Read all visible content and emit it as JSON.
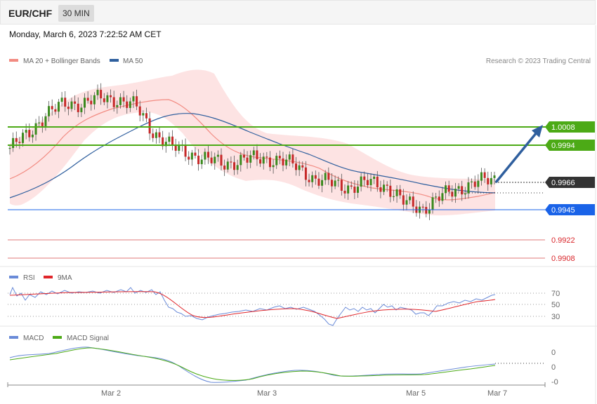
{
  "header": {
    "symbol": "EUR/CHF",
    "timeframe": "30 MIN",
    "datetime": "Monday, March 6, 2023 7:22:52 AM CET"
  },
  "legend": {
    "ma20_label": "MA 20 + Bollinger Bands",
    "ma50_label": "MA 50",
    "copyright": "Research © 2023 Trading Central",
    "ma20_color": "#f28b82",
    "ma50_color": "#2f5f9e"
  },
  "price_levels": [
    {
      "value": "1.0008",
      "type": "resistance",
      "color": "#4caa16"
    },
    {
      "value": "0.9994",
      "type": "resistance",
      "color": "#4caa16"
    },
    {
      "value": "0.9966",
      "type": "current",
      "color": "#333333"
    },
    {
      "value": "0.9945",
      "type": "pivot",
      "color": "#1a63e8"
    },
    {
      "value": "0.9922",
      "type": "support",
      "color": "#d9262b"
    },
    {
      "value": "0.9908",
      "type": "support",
      "color": "#d9262b"
    }
  ],
  "rsi": {
    "label": "RSI",
    "signal_label": "9MA",
    "rsi_color": "#6a8bd8",
    "signal_color": "#e0262b",
    "levels": [
      "70",
      "50",
      "30"
    ]
  },
  "macd": {
    "label": "MACD",
    "signal_label": "MACD Signal",
    "macd_color": "#6a8bd8",
    "signal_color": "#4caa16",
    "levels": [
      "0",
      "0",
      "-0"
    ]
  },
  "x_axis": [
    "Mar 2",
    "Mar 3",
    "Mar 5",
    "Mar 7"
  ],
  "chart_data": {
    "type": "candlestick",
    "x_ticks": [
      "Mar 2",
      "Mar 3",
      "Mar 5",
      "Mar 7"
    ],
    "y_levels": [
      1.0008,
      0.9994,
      0.9966,
      0.9945,
      0.9922,
      0.9908
    ],
    "close_path": [
      0.9992,
      1.0002,
      1.0018,
      1.0025,
      1.0026,
      1.003,
      1.0029,
      1.0024,
      1.0004,
      0.9993,
      0.9988,
      0.9983,
      0.998,
      0.9983,
      0.9984,
      0.9983,
      0.9978,
      0.9968,
      0.9965,
      0.9962,
      0.9966,
      0.9963,
      0.995,
      0.9946,
      0.9955,
      0.9961,
      0.9966,
      0.9968
    ],
    "projection": {
      "from": 0.9968,
      "to": 1.0008
    }
  }
}
